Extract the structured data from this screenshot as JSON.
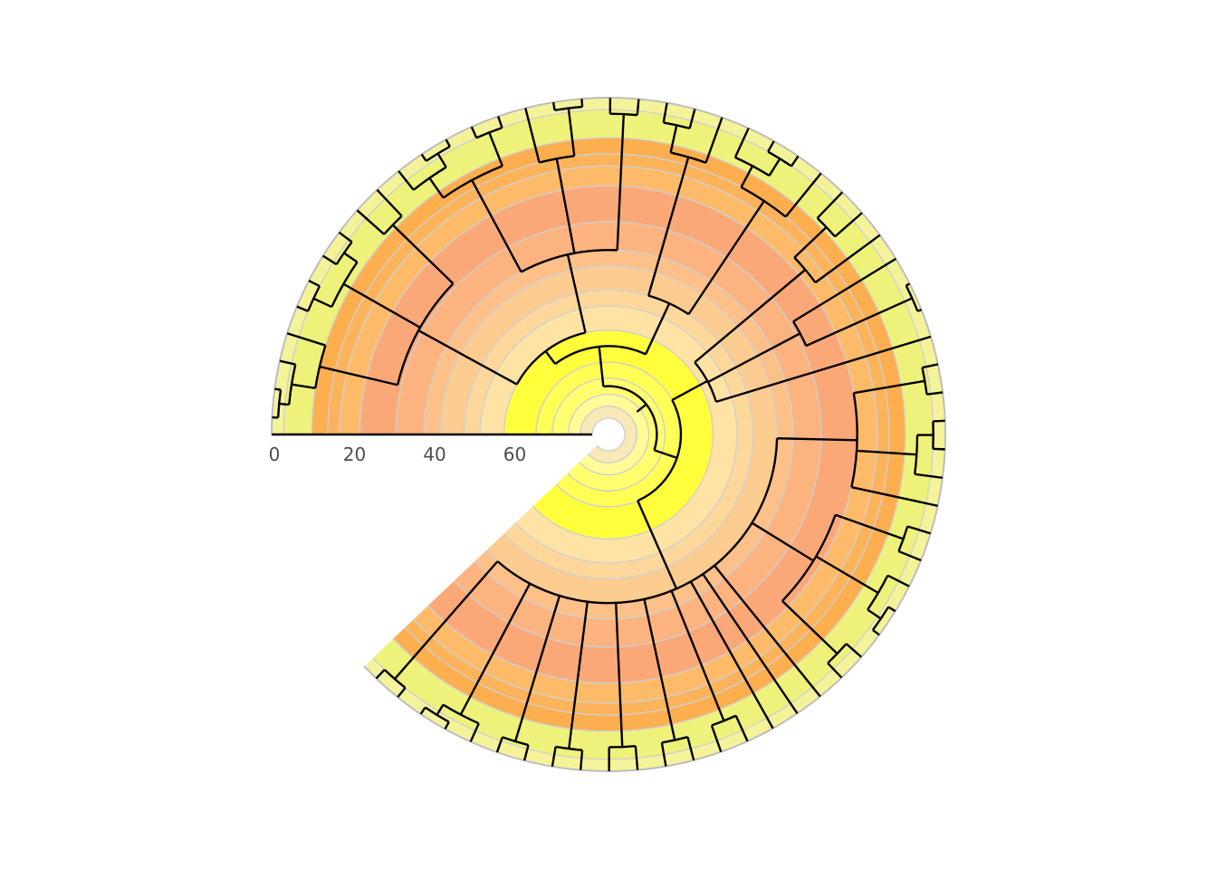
{
  "axis": {
    "ticks": [
      {
        "value": 0,
        "label": "0"
      },
      {
        "value": 20,
        "label": "20"
      },
      {
        "value": 40,
        "label": "40"
      },
      {
        "value": 60,
        "label": "60"
      }
    ],
    "max": 80
  },
  "bands": [
    {
      "from": 0,
      "to": 3,
      "color": "#f5f39a"
    },
    {
      "from": 3,
      "to": 10,
      "color": "#eef27a"
    },
    {
      "from": 10,
      "to": 14,
      "color": "#fdae4f"
    },
    {
      "from": 14,
      "to": 17,
      "color": "#fdb35a"
    },
    {
      "from": 17,
      "to": 22,
      "color": "#fdbb6a"
    },
    {
      "from": 22,
      "to": 31,
      "color": "#fba878"
    },
    {
      "from": 31,
      "to": 38,
      "color": "#fcb37f"
    },
    {
      "from": 38,
      "to": 42,
      "color": "#fdc089"
    },
    {
      "from": 42,
      "to": 48,
      "color": "#fdcc90"
    },
    {
      "from": 48,
      "to": 52,
      "color": "#fed89a"
    },
    {
      "from": 52,
      "to": 58,
      "color": "#fee3a5"
    },
    {
      "from": 58,
      "to": 66,
      "color": "#ffff3c"
    },
    {
      "from": 66,
      "to": 70,
      "color": "#ffff55"
    },
    {
      "from": 70,
      "to": 74,
      "color": "#ffff70"
    },
    {
      "from": 74,
      "to": 77,
      "color": "#fffb96"
    },
    {
      "from": 77,
      "to": 80,
      "color": "#f7e9b8"
    }
  ],
  "colors": {
    "ring_line": "#cfcfcf",
    "branch": "#000000",
    "outer_edge": "#bdbdbd",
    "axis_line": "#000000"
  }
}
